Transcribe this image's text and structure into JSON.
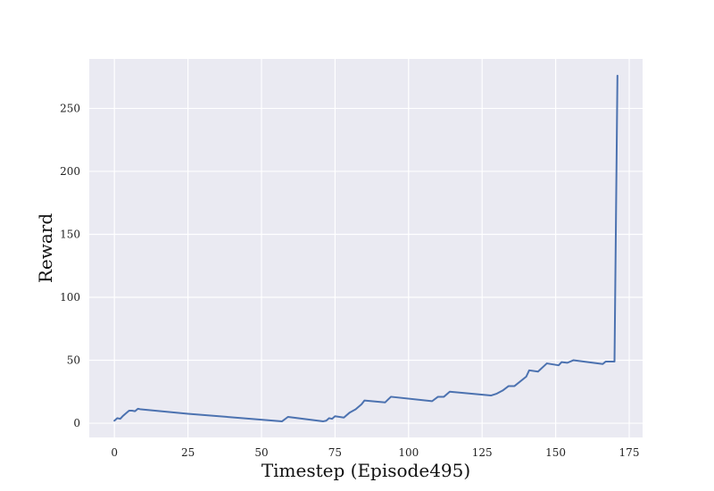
{
  "chart_data": {
    "type": "line",
    "title": "",
    "xlabel": "Timestep (Episode495)",
    "ylabel": "Reward",
    "xlim": [
      -8.55,
      179.55
    ],
    "ylim": [
      -11.3,
      289.3
    ],
    "xticks": [
      0,
      25,
      50,
      75,
      100,
      125,
      150,
      175
    ],
    "yticks": [
      0,
      50,
      100,
      150,
      200,
      250
    ],
    "grid": true,
    "legend": "none",
    "colors": {
      "background": "#eaeaf2",
      "grid": "#ffffff",
      "line": "#4c72b0"
    },
    "series": [
      {
        "x": [
          0,
          1,
          2,
          3,
          4,
          5,
          6,
          7,
          8,
          9,
          25,
          57,
          59,
          71,
          72,
          73,
          74,
          75,
          78,
          80,
          82,
          84,
          85,
          92,
          94,
          108,
          110,
          112,
          114,
          128,
          130,
          132,
          134,
          136,
          140,
          141,
          144,
          147,
          151,
          152,
          154,
          156,
          166,
          167,
          170,
          171
        ],
        "y": [
          2,
          4,
          3.5,
          6,
          8,
          10,
          10,
          9.5,
          11.5,
          11,
          7.5,
          1.5,
          5,
          1.5,
          2,
          4,
          3.5,
          5.5,
          4.5,
          8.5,
          11,
          15,
          18,
          16.5,
          21,
          17.5,
          21,
          21,
          25,
          22,
          23.5,
          26,
          29.5,
          29.5,
          37,
          42,
          41,
          47.5,
          46,
          48.5,
          48,
          50,
          47,
          49,
          49,
          276
        ]
      }
    ]
  }
}
